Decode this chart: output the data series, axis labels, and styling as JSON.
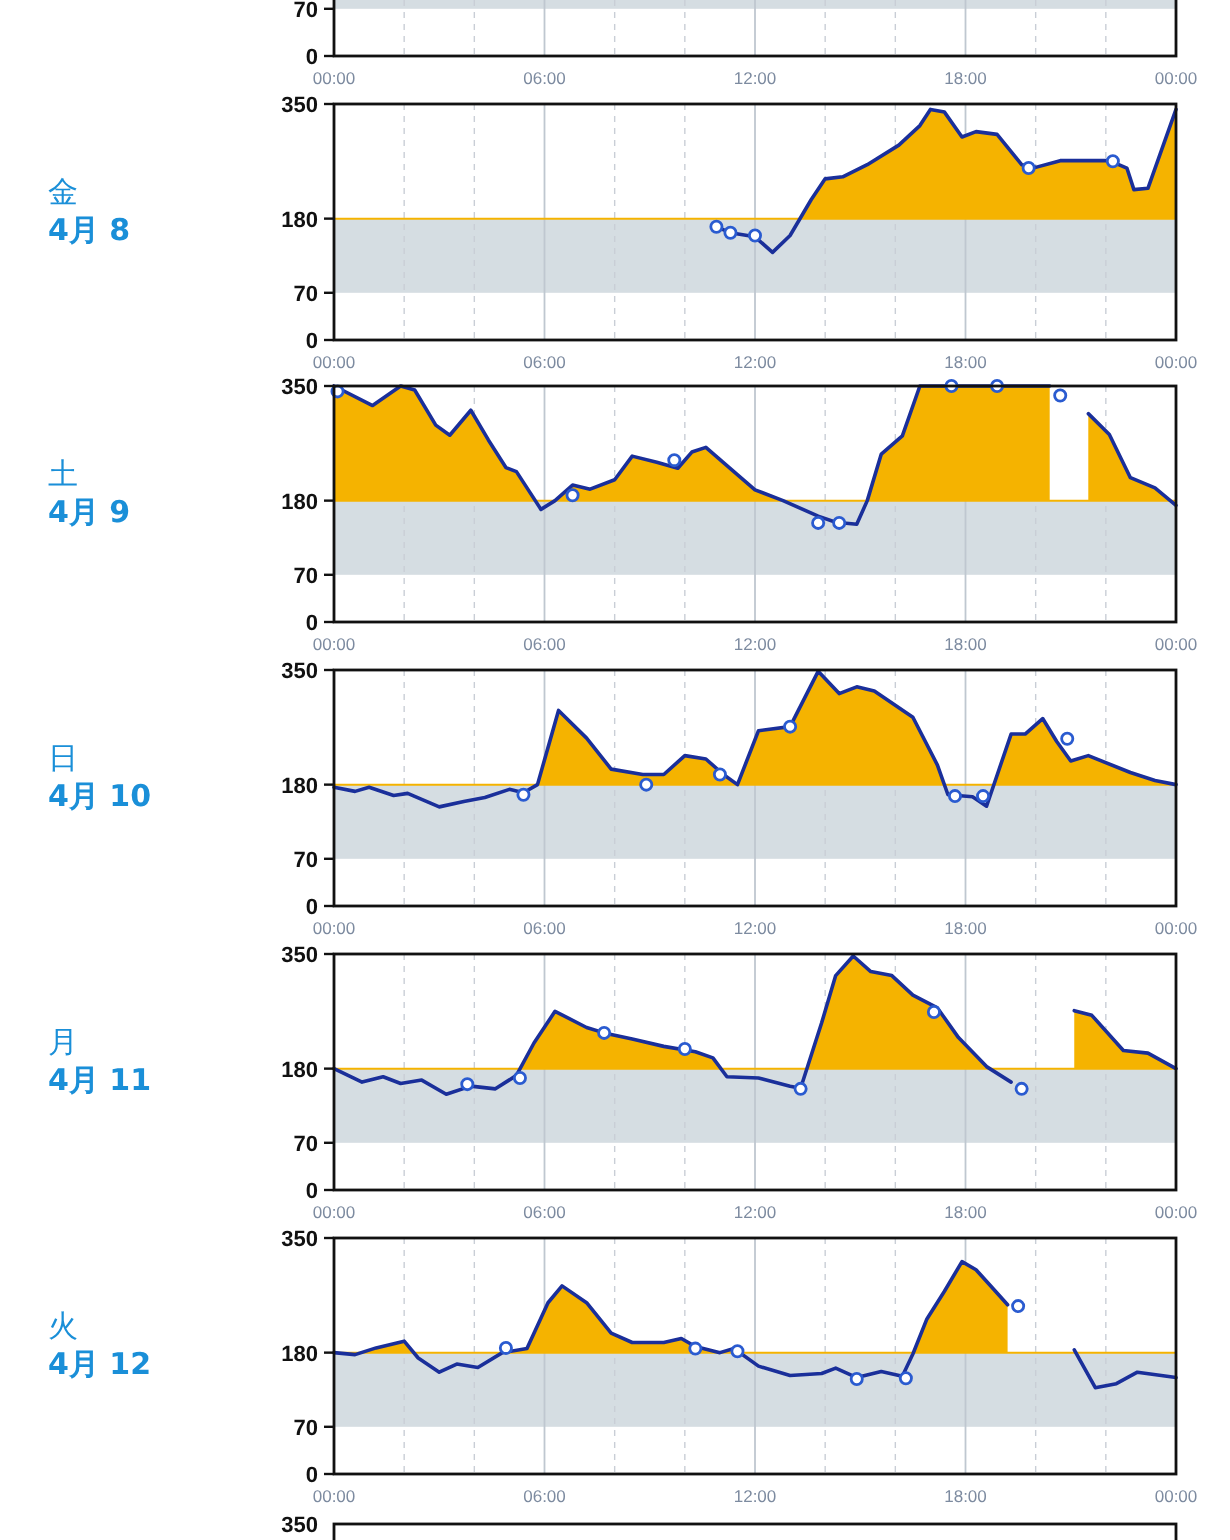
{
  "chart_data": [
    {
      "type": "line",
      "xlim": [
        0,
        24
      ],
      "ylim": [
        0,
        350
      ],
      "yticks": [
        0,
        70
      ],
      "xticks": [
        {
          "value": 0,
          "label": "00:00"
        },
        {
          "value": 2,
          "label": null
        },
        {
          "value": 4,
          "label": null
        },
        {
          "value": 6,
          "label": "06:00"
        },
        {
          "value": 8,
          "label": null
        },
        {
          "value": 10,
          "label": null
        },
        {
          "value": 12,
          "label": "12:00"
        },
        {
          "value": 14,
          "label": null
        },
        {
          "value": 16,
          "label": null
        },
        {
          "value": 18,
          "label": "18:00"
        },
        {
          "value": 20,
          "label": null
        },
        {
          "value": 22,
          "label": null
        },
        {
          "value": 24,
          "label": "00:00"
        }
      ],
      "grid": "x",
      "bands": [
        {
          "axis": "y",
          "from": 70,
          "to": 180,
          "color": "#d5dde2"
        }
      ]
    },
    {
      "type": "line",
      "annotations": [
        "金",
        "4月 8"
      ],
      "xlim": [
        0,
        24
      ],
      "ylim": [
        0,
        350
      ],
      "yticks": [
        0,
        70,
        180,
        350
      ],
      "xticks": [
        {
          "value": 0,
          "label": "00:00"
        },
        {
          "value": 2,
          "label": null
        },
        {
          "value": 4,
          "label": null
        },
        {
          "value": 6,
          "label": "06:00"
        },
        {
          "value": 8,
          "label": null
        },
        {
          "value": 10,
          "label": null
        },
        {
          "value": 12,
          "label": "12:00"
        },
        {
          "value": 14,
          "label": null
        },
        {
          "value": 16,
          "label": null
        },
        {
          "value": 18,
          "label": "18:00"
        },
        {
          "value": 20,
          "label": null
        },
        {
          "value": 22,
          "label": null
        },
        {
          "value": 24,
          "label": "00:00"
        }
      ],
      "grid": "x",
      "bands": [
        {
          "axis": "y",
          "from": 70,
          "to": 180,
          "color": "#d5dde2"
        }
      ],
      "ref_lines": [
        {
          "axis": "y",
          "value": 180,
          "color": "#f5b300"
        }
      ],
      "series": [
        {
          "type": "line",
          "color": "#1a2f9a",
          "x": [
            10.9,
            11.3,
            12.0,
            12.5,
            13.0,
            13.6,
            14.0,
            14.5,
            15.2,
            16.1,
            16.7,
            17.0,
            17.4,
            17.9,
            18.3,
            18.9,
            19.6,
            20.0,
            20.7,
            22.1,
            22.6,
            22.8,
            23.2,
            24.0
          ],
          "values": [
            168,
            159,
            153,
            130,
            155,
            208,
            239,
            242,
            260,
            289,
            318,
            342,
            338,
            301,
            309,
            305,
            260,
            256,
            266,
            266,
            255,
            223,
            225,
            342
          ]
        },
        {
          "type": "scatter",
          "marker": "circle",
          "color": "#2a5bd0",
          "x": [
            10.9,
            11.3,
            12.0,
            19.8,
            22.2
          ],
          "values": [
            168,
            159,
            155,
            255,
            265
          ]
        }
      ]
    },
    {
      "type": "line",
      "annotations": [
        "土",
        "4月 9"
      ],
      "xlim": [
        0,
        24
      ],
      "ylim": [
        0,
        350
      ],
      "yticks": [
        0,
        70,
        180,
        350
      ],
      "xticks": [
        {
          "value": 0,
          "label": "00:00"
        },
        {
          "value": 2,
          "label": null
        },
        {
          "value": 4,
          "label": null
        },
        {
          "value": 6,
          "label": "06:00"
        },
        {
          "value": 8,
          "label": null
        },
        {
          "value": 10,
          "label": null
        },
        {
          "value": 12,
          "label": "12:00"
        },
        {
          "value": 14,
          "label": null
        },
        {
          "value": 16,
          "label": null
        },
        {
          "value": 18,
          "label": "18:00"
        },
        {
          "value": 20,
          "label": null
        },
        {
          "value": 22,
          "label": null
        },
        {
          "value": 24,
          "label": "00:00"
        }
      ],
      "grid": "x",
      "bands": [
        {
          "axis": "y",
          "from": 70,
          "to": 180,
          "color": "#d5dde2"
        }
      ],
      "ref_lines": [
        {
          "axis": "y",
          "value": 180,
          "color": "#f5b300"
        }
      ],
      "series": [
        {
          "type": "line",
          "color": "#1a2f9a",
          "x": [
            0,
            1.1,
            1.9,
            2.3,
            2.9,
            3.3,
            3.9,
            4.4,
            4.9,
            5.2,
            5.9,
            6.3,
            6.8,
            7.3,
            8.0,
            8.5,
            9.2,
            9.8,
            10.2,
            10.6,
            11.2,
            12.0,
            12.8,
            13.8,
            14.3,
            14.9,
            15.2,
            15.6,
            16.2,
            16.7,
            18.0,
            19.0,
            20.4,
            21.0,
            21.5,
            22.1,
            22.7,
            23.4,
            24.0
          ],
          "values": [
            350,
            321,
            350,
            344,
            292,
            277,
            314,
            270,
            229,
            223,
            167,
            180,
            203,
            197,
            211,
            246,
            237,
            228,
            252,
            259,
            232,
            196,
            180,
            157,
            148,
            145,
            180,
            249,
            276,
            350,
            350,
            350,
            350,
            null,
            309,
            278,
            214,
            199,
            173
          ]
        },
        {
          "type": "scatter",
          "marker": "circle",
          "color": "#2a5bd0",
          "x": [
            0.1,
            6.8,
            9.7,
            13.8,
            14.4,
            17.6,
            18.9,
            20.7
          ],
          "values": [
            342,
            188,
            240,
            147,
            147,
            350,
            350,
            336
          ]
        }
      ]
    },
    {
      "type": "line",
      "annotations": [
        "日",
        "4月 10"
      ],
      "xlim": [
        0,
        24
      ],
      "ylim": [
        0,
        350
      ],
      "yticks": [
        0,
        70,
        180,
        350
      ],
      "xticks": [
        {
          "value": 0,
          "label": "00:00"
        },
        {
          "value": 2,
          "label": null
        },
        {
          "value": 4,
          "label": null
        },
        {
          "value": 6,
          "label": "06:00"
        },
        {
          "value": 8,
          "label": null
        },
        {
          "value": 10,
          "label": null
        },
        {
          "value": 12,
          "label": "12:00"
        },
        {
          "value": 14,
          "label": null
        },
        {
          "value": 16,
          "label": null
        },
        {
          "value": 18,
          "label": "18:00"
        },
        {
          "value": 20,
          "label": null
        },
        {
          "value": 22,
          "label": null
        },
        {
          "value": 24,
          "label": "00:00"
        }
      ],
      "grid": "x",
      "bands": [
        {
          "axis": "y",
          "from": 70,
          "to": 180,
          "color": "#d5dde2"
        }
      ],
      "ref_lines": [
        {
          "axis": "y",
          "value": 180,
          "color": "#f5b300"
        }
      ],
      "series": [
        {
          "type": "line",
          "color": "#1a2f9a",
          "x": [
            0,
            0.6,
            1.0,
            1.7,
            2.1,
            3.0,
            3.7,
            4.3,
            5.0,
            5.4,
            5.8,
            6.4,
            7.2,
            7.9,
            8.8,
            9.4,
            10.0,
            10.6,
            11.1,
            11.5,
            12.1,
            13.0,
            13.8,
            14.4,
            14.9,
            15.4,
            16.5,
            17.2,
            17.5,
            18.2,
            18.6,
            19.3,
            19.7,
            20.2,
            20.6,
            21.0,
            21.5,
            22.7,
            23.4,
            24.0
          ],
          "values": [
            176,
            170,
            176,
            164,
            167,
            147,
            155,
            161,
            173,
            168,
            180,
            290,
            249,
            203,
            195,
            195,
            223,
            218,
            195,
            180,
            260,
            266,
            348,
            315,
            325,
            319,
            280,
            209,
            165,
            162,
            148,
            255,
            255,
            278,
            244,
            215,
            223,
            198,
            186,
            180
          ]
        },
        {
          "type": "scatter",
          "marker": "circle",
          "color": "#2a5bd0",
          "x": [
            5.4,
            8.9,
            11.0,
            13.0,
            17.7,
            18.5,
            20.9
          ],
          "values": [
            165,
            180,
            195,
            266,
            163,
            163,
            248
          ]
        }
      ]
    },
    {
      "type": "line",
      "annotations": [
        "月",
        "4月 11"
      ],
      "xlim": [
        0,
        24
      ],
      "ylim": [
        0,
        350
      ],
      "yticks": [
        0,
        70,
        180,
        350
      ],
      "xticks": [
        {
          "value": 0,
          "label": "00:00"
        },
        {
          "value": 2,
          "label": null
        },
        {
          "value": 4,
          "label": null
        },
        {
          "value": 6,
          "label": "06:00"
        },
        {
          "value": 8,
          "label": null
        },
        {
          "value": 10,
          "label": null
        },
        {
          "value": 12,
          "label": "12:00"
        },
        {
          "value": 14,
          "label": null
        },
        {
          "value": 16,
          "label": null
        },
        {
          "value": 18,
          "label": "18:00"
        },
        {
          "value": 20,
          "label": null
        },
        {
          "value": 22,
          "label": null
        },
        {
          "value": 24,
          "label": "00:00"
        }
      ],
      "grid": "x",
      "bands": [
        {
          "axis": "y",
          "from": 70,
          "to": 180,
          "color": "#d5dde2"
        }
      ],
      "ref_lines": [
        {
          "axis": "y",
          "value": 180,
          "color": "#f5b300"
        }
      ],
      "series": [
        {
          "type": "line",
          "color": "#1a2f9a",
          "x": [
            0,
            0.8,
            1.4,
            1.9,
            2.5,
            3.2,
            3.9,
            4.6,
            5.2,
            5.7,
            6.3,
            7.2,
            7.7,
            8.5,
            9.4,
            10.3,
            10.8,
            11.2,
            12.1,
            13.0,
            13.3,
            13.9,
            14.3,
            14.8,
            15.3,
            15.9,
            16.5,
            17.2,
            17.8,
            18.6,
            19.3,
            19.5,
            21.1,
            21.6,
            22.5,
            23.2,
            24.0
          ],
          "values": [
            180,
            160,
            168,
            158,
            163,
            142,
            154,
            150,
            170,
            218,
            265,
            241,
            233,
            224,
            213,
            205,
            196,
            168,
            166,
            154,
            151,
            248,
            318,
            347,
            324,
            318,
            289,
            270,
            226,
            183,
            160,
            null,
            266,
            259,
            207,
            203,
            180
          ]
        },
        {
          "type": "scatter",
          "marker": "circle",
          "color": "#2a5bd0",
          "x": [
            3.8,
            5.3,
            7.7,
            10.0,
            13.3,
            17.1,
            19.6
          ],
          "values": [
            157,
            166,
            233,
            209,
            150,
            264,
            150
          ]
        }
      ]
    },
    {
      "type": "line",
      "annotations": [
        "火",
        "4月 12"
      ],
      "xlim": [
        0,
        24
      ],
      "ylim": [
        0,
        350
      ],
      "yticks": [
        0,
        70,
        180,
        350
      ],
      "xticks": [
        {
          "value": 0,
          "label": "00:00"
        },
        {
          "value": 2,
          "label": null
        },
        {
          "value": 4,
          "label": null
        },
        {
          "value": 6,
          "label": "06:00"
        },
        {
          "value": 8,
          "label": null
        },
        {
          "value": 10,
          "label": null
        },
        {
          "value": 12,
          "label": "12:00"
        },
        {
          "value": 14,
          "label": null
        },
        {
          "value": 16,
          "label": null
        },
        {
          "value": 18,
          "label": "18:00"
        },
        {
          "value": 20,
          "label": null
        },
        {
          "value": 22,
          "label": null
        },
        {
          "value": 24,
          "label": "00:00"
        }
      ],
      "grid": "x",
      "bands": [
        {
          "axis": "y",
          "from": 70,
          "to": 180,
          "color": "#d5dde2"
        }
      ],
      "ref_lines": [
        {
          "axis": "y",
          "value": 180,
          "color": "#f5b300"
        }
      ],
      "series": [
        {
          "type": "line",
          "color": "#1a2f9a",
          "x": [
            0,
            0.6,
            1.2,
            2.0,
            2.4,
            3.0,
            3.5,
            4.1,
            4.8,
            5.5,
            6.1,
            6.5,
            7.2,
            7.9,
            8.5,
            9.4,
            9.9,
            10.3,
            11.0,
            11.4,
            12.1,
            13.0,
            13.9,
            14.3,
            14.9,
            15.6,
            16.2,
            16.5,
            16.9,
            17.4,
            17.9,
            18.3,
            18.7,
            19.2,
            19.3,
            21.1,
            21.7,
            22.3,
            22.9,
            24.0
          ],
          "values": [
            180,
            177,
            187,
            197,
            172,
            151,
            163,
            158,
            180,
            186,
            254,
            279,
            254,
            209,
            195,
            195,
            201,
            189,
            180,
            186,
            160,
            146,
            149,
            157,
            143,
            152,
            145,
            178,
            230,
            271,
            315,
            303,
            280,
            251,
            null,
            184,
            128,
            134,
            151,
            143
          ]
        },
        {
          "type": "scatter",
          "marker": "circle",
          "color": "#2a5bd0",
          "x": [
            4.9,
            10.3,
            11.5,
            14.9,
            16.3,
            19.5
          ],
          "values": [
            187,
            186,
            182,
            141,
            142,
            249
          ]
        }
      ]
    },
    {
      "type": "other",
      "annotations": [
        "350"
      ]
    }
  ]
}
